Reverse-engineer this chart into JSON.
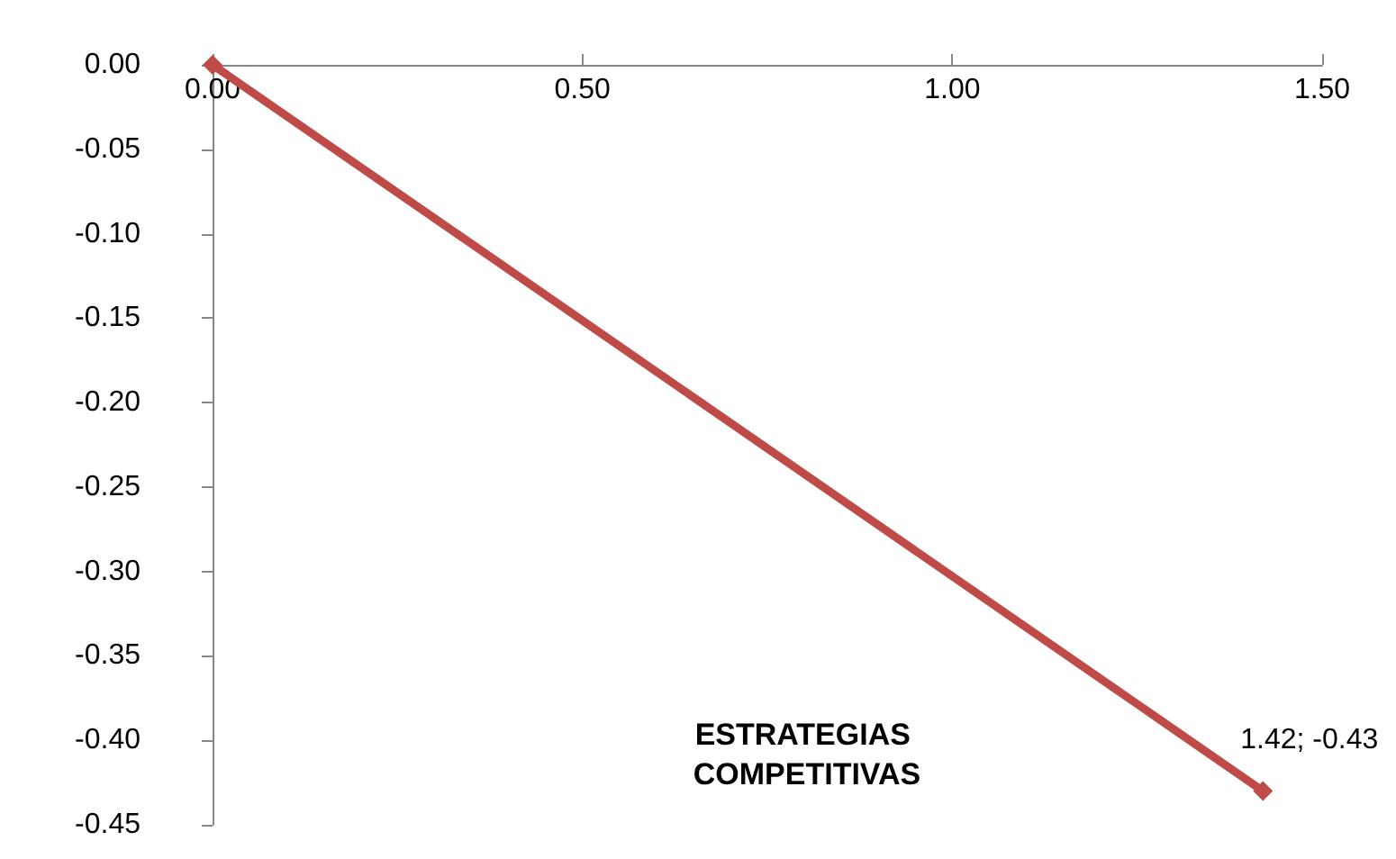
{
  "chart_data": {
    "type": "line",
    "title": "ESTRATEGIAS COMPETITIVAS",
    "xlim": [
      0,
      1.5
    ],
    "xticks": [
      {
        "value": 0,
        "label": "0.00"
      },
      {
        "value": 0.5,
        "label": "0.50"
      },
      {
        "value": 1,
        "label": "1.00"
      },
      {
        "value": 1.5,
        "label": "1.50"
      }
    ],
    "ylim": [
      -0.45,
      0
    ],
    "yticks": [
      {
        "value": 0,
        "label": "0.00"
      },
      {
        "value": -0.05,
        "label": "-0.05"
      },
      {
        "value": -0.1,
        "label": "-0.10"
      },
      {
        "value": -0.15,
        "label": "-0.15"
      },
      {
        "value": -0.2,
        "label": "-0.20"
      },
      {
        "value": -0.25,
        "label": "-0.25"
      },
      {
        "value": -0.3,
        "label": "-0.30"
      },
      {
        "value": -0.35,
        "label": "-0.35"
      },
      {
        "value": -0.4,
        "label": "-0.40"
      },
      {
        "value": -0.45,
        "label": "-0.45"
      }
    ],
    "series": [
      {
        "color": "#be4b48",
        "x": [
          0,
          1.42
        ],
        "values": [
          0,
          -0.43
        ],
        "value_labels": [
          null,
          "1.42; -0.43"
        ]
      }
    ],
    "marker": "diamond",
    "line_style": "solid"
  }
}
